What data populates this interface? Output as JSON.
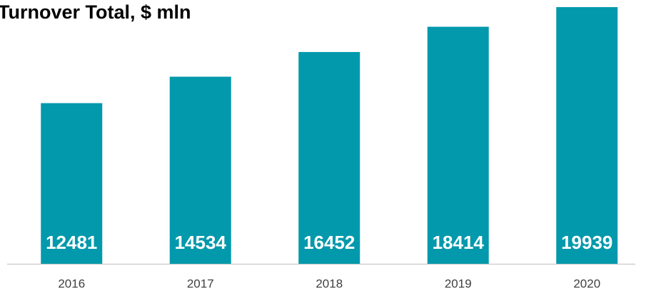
{
  "chart_data": {
    "type": "bar",
    "title": "Turnover Total, $ mln",
    "categories": [
      "2016",
      "2017",
      "2018",
      "2019",
      "2020"
    ],
    "values": [
      12481,
      14534,
      16452,
      18414,
      19939
    ],
    "color": "#0399ac"
  }
}
